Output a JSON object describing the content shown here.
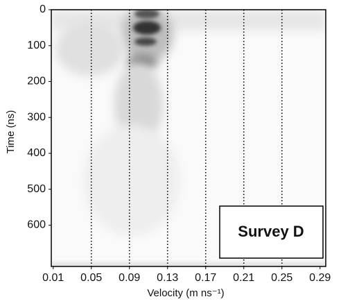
{
  "chart_data": {
    "type": "heatmap",
    "xlabel": "Velocity (m ns⁻¹)",
    "ylabel": "Time (ns)",
    "annotation": "Survey D",
    "xlim": [
      0.008,
      0.296
    ],
    "xticks": [
      0.01,
      0.05,
      0.09,
      0.13,
      0.17,
      0.21,
      0.25,
      0.29
    ],
    "ylim": [
      0,
      715
    ],
    "yticks": [
      0,
      100,
      200,
      300,
      400,
      500,
      600
    ],
    "y_inverted": true,
    "vlines": [
      0.05,
      0.09,
      0.13,
      0.17,
      0.21,
      0.25
    ],
    "vline_color": "#000000"
  }
}
